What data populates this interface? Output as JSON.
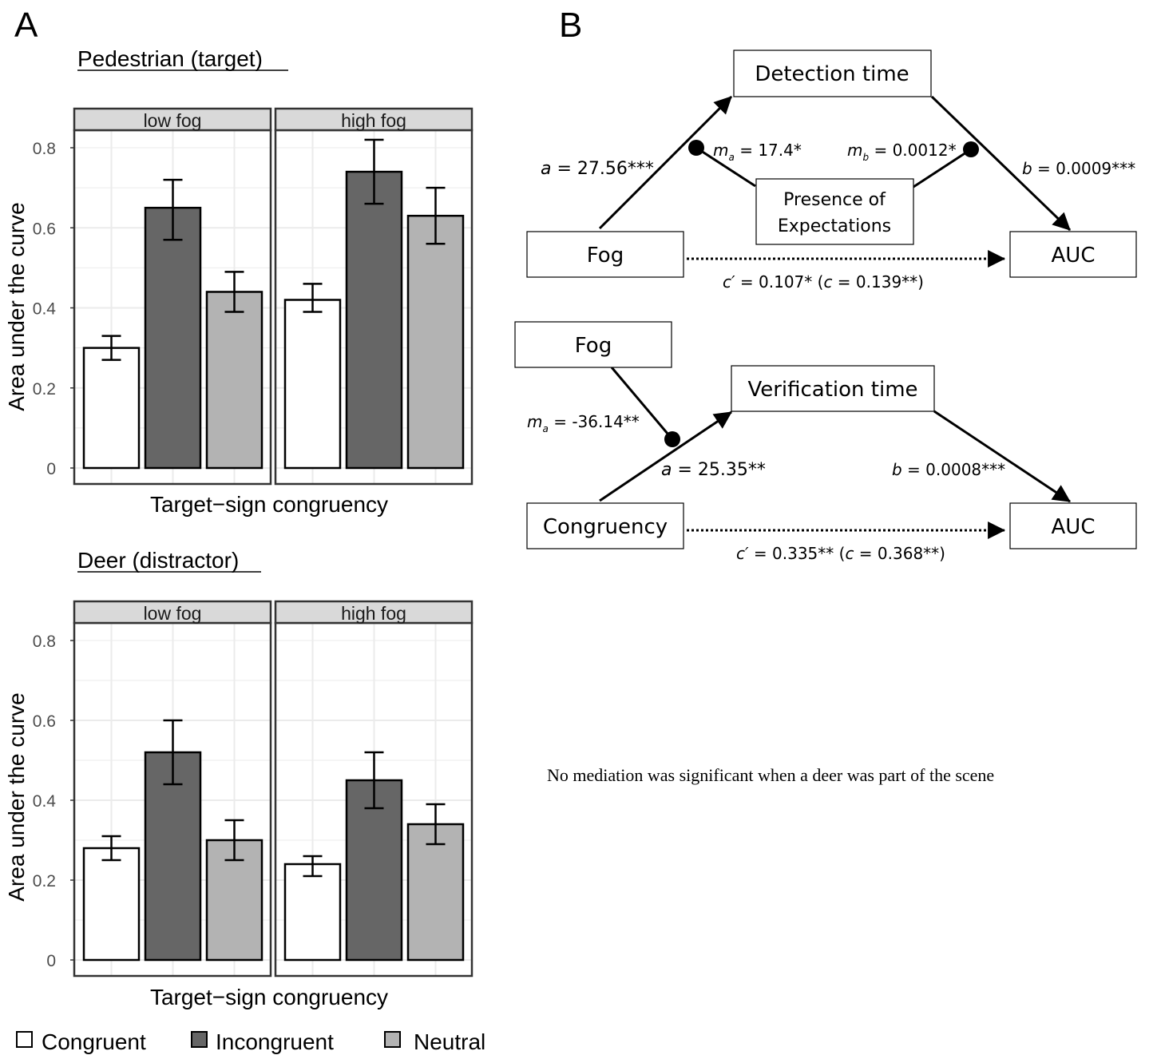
{
  "panel_a_label": "A",
  "panel_b_label": "B",
  "chart_data": [
    {
      "type": "bar",
      "title": "Pedestrian (target)",
      "xlabel": "Target−sign congruency",
      "ylabel": "Area under the curve",
      "ylim": [
        0,
        0.84
      ],
      "yticks": [
        "0",
        "0.2",
        "0.4",
        "0.6",
        "0.8"
      ],
      "grid": true,
      "facets": [
        {
          "label": "low fog",
          "values": [
            0.3,
            0.65,
            0.44
          ],
          "errors": [
            [
              0.27,
              0.33
            ],
            [
              0.57,
              0.72
            ],
            [
              0.39,
              0.49
            ]
          ]
        },
        {
          "label": "high fog",
          "values": [
            0.42,
            0.74,
            0.63
          ],
          "errors": [
            [
              0.39,
              0.46
            ],
            [
              0.66,
              0.82
            ],
            [
              0.56,
              0.7
            ]
          ]
        }
      ]
    },
    {
      "type": "bar",
      "title": "Deer (distractor)",
      "xlabel": "Target−sign congruency",
      "ylabel": "Area under the curve",
      "ylim": [
        0,
        0.84
      ],
      "yticks": [
        "0",
        "0.2",
        "0.4",
        "0.6",
        "0.8"
      ],
      "grid": true,
      "facets": [
        {
          "label": "low fog",
          "values": [
            0.28,
            0.52,
            0.3
          ],
          "errors": [
            [
              0.25,
              0.31
            ],
            [
              0.44,
              0.6
            ],
            [
              0.25,
              0.35
            ]
          ]
        },
        {
          "label": "high fog",
          "values": [
            0.24,
            0.45,
            0.34
          ],
          "errors": [
            [
              0.21,
              0.26
            ],
            [
              0.38,
              0.52
            ],
            [
              0.29,
              0.39
            ]
          ]
        }
      ]
    }
  ],
  "legend": {
    "position": "bottom",
    "items": [
      {
        "label": "Congruent",
        "color": "#ffffff"
      },
      {
        "label": "Incongruent",
        "color": "#666666"
      },
      {
        "label": "Neutral",
        "color": "#b3b3b3"
      }
    ]
  },
  "diagram1": {
    "boxes": {
      "mediator": "Detection time",
      "moderator_line1": "Presence of",
      "moderator_line2": "Expectations",
      "x": "Fog",
      "y": "AUC"
    },
    "paths": {
      "a_sym": "a",
      "a_val": " = 27.56***",
      "ma_sym": "m",
      "ma_sub": "a",
      "ma_val": " = 17.4*",
      "mb_sym": "m",
      "mb_sub": "b",
      "mb_val": " = 0.0012*",
      "b_sym": "b",
      "b_val": " = 0.0009***",
      "cp_sym": "c′",
      "cp_val": " = 0.107* (",
      "c_sym": "c",
      "c_val": " = 0.139**)"
    }
  },
  "diagram2": {
    "boxes": {
      "moderator": "Fog",
      "mediator": "Verification time",
      "x": "Congruency",
      "y": "AUC"
    },
    "paths": {
      "ma_sym": "m",
      "ma_sub": "a",
      "ma_val": " = -36.14**",
      "a_sym": "a",
      "a_val": " = 25.35**",
      "b_sym": "b",
      "b_val": " = 0.0008***",
      "cp_sym": "c′",
      "cp_val": " = 0.335** (",
      "c_sym": "c",
      "c_val": " = 0.368**)"
    }
  },
  "note": "No mediation was significant when a deer was part of the scene"
}
